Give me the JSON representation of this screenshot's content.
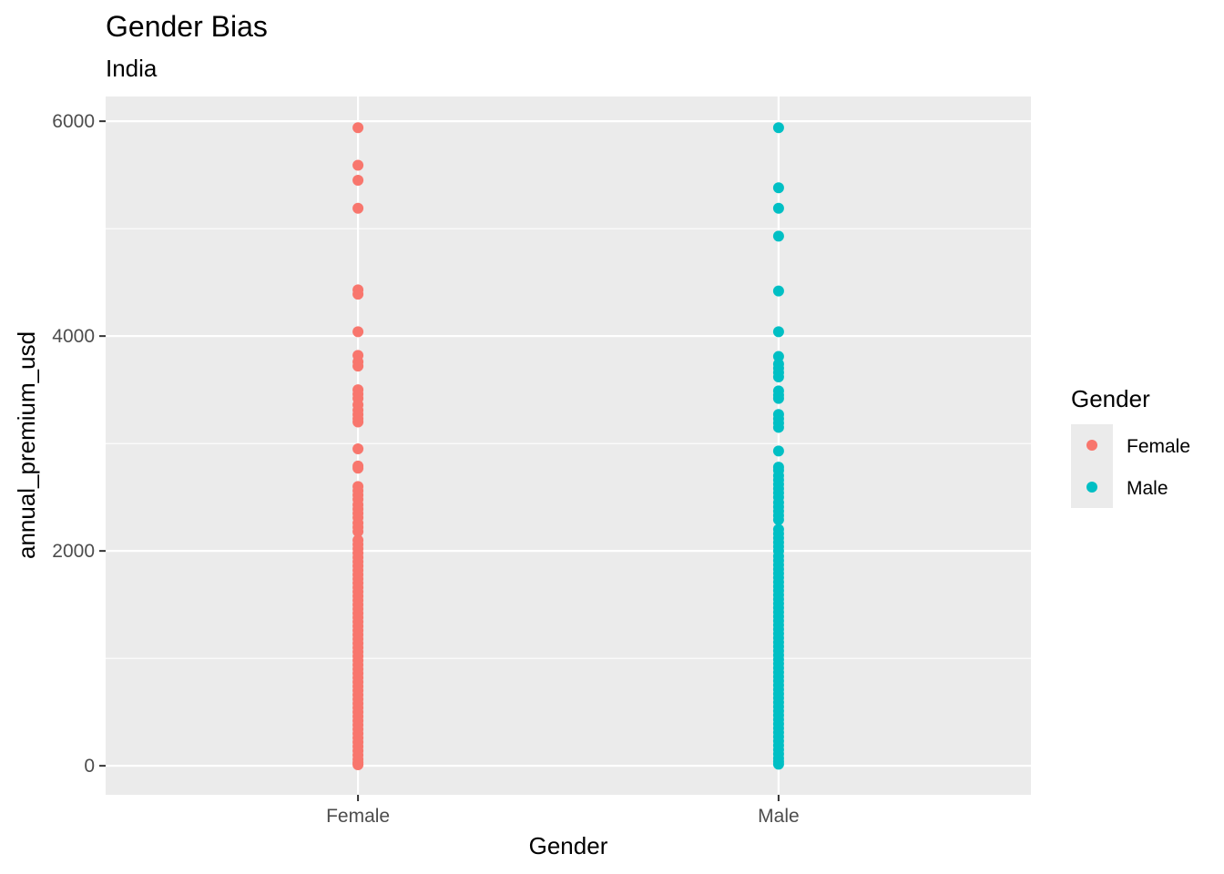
{
  "chart_data": {
    "type": "scatter",
    "title": "Gender Bias",
    "subtitle": "India",
    "xlabel": "Gender",
    "ylabel": "annual_premium_usd",
    "categories": [
      "Female",
      "Male"
    ],
    "yticks": [
      0,
      2000,
      4000,
      6000
    ],
    "ylim": [
      -270,
      6230
    ],
    "grid": true,
    "legend": {
      "title": "Gender",
      "placement": "right",
      "entries": [
        "Female",
        "Male"
      ]
    },
    "colors": {
      "Female": "#F8766D",
      "Male": "#00BFC4",
      "panel": "#EBEBEB",
      "grid": "#FFFFFF"
    },
    "series": [
      {
        "name": "Female",
        "values": [
          5940,
          5590,
          5450,
          5190,
          4430,
          4390,
          4040,
          3820,
          3760,
          3720,
          3500,
          3460,
          3420,
          3360,
          3310,
          3270,
          3230,
          3200,
          2950,
          2790,
          2770,
          2600,
          2560,
          2520,
          2480,
          2430,
          2390,
          2350,
          2310,
          2260,
          2220,
          2180,
          2100,
          2060,
          2020,
          1980,
          1940,
          1900,
          1860,
          1820,
          1780,
          1740,
          1700,
          1660,
          1620,
          1580,
          1540,
          1500,
          1460,
          1420,
          1380,
          1340,
          1300,
          1260,
          1220,
          1180,
          1140,
          1100,
          1060,
          1020,
          980,
          940,
          900,
          860,
          820,
          780,
          740,
          700,
          660,
          620,
          580,
          540,
          500,
          460,
          420,
          380,
          340,
          300,
          260,
          220,
          180,
          140,
          100,
          60,
          30,
          10
        ]
      },
      {
        "name": "Male",
        "values": [
          5940,
          5380,
          5190,
          4930,
          4420,
          4040,
          3810,
          3740,
          3700,
          3660,
          3620,
          3490,
          3450,
          3420,
          3270,
          3230,
          3190,
          3150,
          2930,
          2780,
          2750,
          2700,
          2660,
          2620,
          2580,
          2540,
          2500,
          2450,
          2410,
          2370,
          2330,
          2290,
          2200,
          2160,
          2120,
          2080,
          2040,
          2000,
          1950,
          1910,
          1870,
          1830,
          1790,
          1750,
          1710,
          1670,
          1630,
          1590,
          1550,
          1510,
          1470,
          1430,
          1390,
          1350,
          1310,
          1270,
          1230,
          1190,
          1150,
          1110,
          1070,
          1030,
          990,
          950,
          910,
          870,
          830,
          790,
          750,
          710,
          670,
          630,
          590,
          550,
          510,
          470,
          430,
          390,
          350,
          310,
          270,
          230,
          190,
          150,
          110,
          70,
          40,
          15
        ]
      }
    ]
  }
}
